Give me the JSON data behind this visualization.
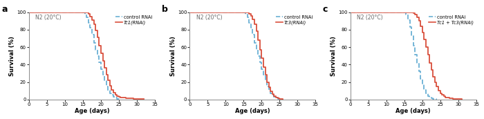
{
  "panels": [
    {
      "label": "a",
      "title": "N2 (20°C)",
      "legend_lines": [
        "control RNAi",
        "Tc1(RNAi)"
      ],
      "control_x": [
        0,
        15,
        15.5,
        16,
        16.5,
        17,
        17.5,
        18,
        18.5,
        19,
        19.5,
        20,
        20.5,
        21,
        21.5,
        22,
        22.5,
        23,
        23.5,
        24,
        24.5,
        25
      ],
      "control_y": [
        100,
        100,
        97,
        94,
        88,
        82,
        74,
        65,
        57,
        50,
        43,
        35,
        28,
        21,
        15,
        10,
        7,
        5,
        3,
        2,
        1,
        0
      ],
      "treatment_x": [
        0,
        16,
        16.5,
        17,
        17.5,
        18,
        18.5,
        19,
        19.5,
        20,
        20.5,
        21,
        21.5,
        22,
        22.5,
        23,
        23.5,
        24,
        24.5,
        25,
        25.5,
        26,
        27,
        28,
        29,
        30,
        31,
        32
      ],
      "treatment_y": [
        100,
        100,
        98,
        95,
        91,
        86,
        79,
        71,
        62,
        53,
        44,
        36,
        28,
        22,
        16,
        11,
        8,
        5,
        4,
        3,
        2.5,
        2,
        1.5,
        1.2,
        1,
        0.8,
        0.5,
        0.3
      ]
    },
    {
      "label": "b",
      "title": "N2 (20°C)",
      "legend_lines": [
        "control RNAi",
        "Tc3(RNAi)"
      ],
      "control_x": [
        0,
        15,
        15.5,
        16,
        16.5,
        17,
        17.5,
        18,
        18.5,
        19,
        19.5,
        20,
        20.5,
        21,
        21.5,
        22,
        22.5,
        23,
        23.5,
        24,
        24.5,
        25
      ],
      "control_y": [
        100,
        100,
        97,
        94,
        88,
        82,
        74,
        65,
        57,
        50,
        43,
        35,
        28,
        21,
        15,
        10,
        7,
        5,
        3,
        2,
        1,
        0
      ],
      "treatment_x": [
        0,
        16,
        16.5,
        17,
        17.5,
        18,
        18.5,
        19,
        19.5,
        20,
        20.5,
        21,
        21.5,
        22,
        22.5,
        23,
        23.5,
        24,
        24.5,
        25,
        25.5,
        26
      ],
      "treatment_y": [
        100,
        100,
        98,
        96,
        92,
        86,
        78,
        68,
        57,
        47,
        37,
        28,
        20,
        14,
        9,
        6,
        4,
        2.5,
        1.5,
        1,
        0.5,
        0.2
      ]
    },
    {
      "label": "c",
      "title": "N2 (20°C)",
      "legend_lines": [
        "control RNAi",
        "Tc1 + Tc3(RNAi)"
      ],
      "control_x": [
        0,
        15,
        15.5,
        16,
        16.5,
        17,
        17.5,
        18,
        18.5,
        19,
        19.5,
        20,
        20.5,
        21,
        21.5,
        22,
        22.5,
        23,
        23.5,
        24
      ],
      "control_y": [
        100,
        100,
        97,
        91,
        83,
        73,
        62,
        51,
        41,
        32,
        24,
        17,
        11,
        7,
        4,
        2.5,
        1.5,
        1,
        0.5,
        0.2
      ],
      "treatment_x": [
        0,
        17,
        17.5,
        18,
        18.5,
        19,
        19.5,
        20,
        20.5,
        21,
        21.5,
        22,
        22.5,
        23,
        23.5,
        24,
        24.5,
        25,
        25.5,
        26,
        26.5,
        27,
        27.5,
        28,
        28.5,
        29,
        29.5,
        30,
        30.5,
        31
      ],
      "treatment_y": [
        100,
        100,
        99,
        97,
        94,
        90,
        84,
        77,
        69,
        60,
        51,
        42,
        34,
        26,
        20,
        15,
        10,
        7,
        5,
        3.5,
        2.5,
        2,
        1.5,
        1.2,
        1,
        0.8,
        0.6,
        0.4,
        0.3,
        0.2
      ]
    }
  ],
  "control_color": "#6ab0d4",
  "treatment_color": "#d94f3d",
  "xlabel": "Age (days)",
  "ylabel": "Survival (%)",
  "linewidth": 1.3,
  "xlim": [
    0,
    35
  ],
  "ylim": [
    0,
    100
  ],
  "xticks": [
    0,
    5,
    10,
    15,
    20,
    25,
    30,
    35
  ],
  "yticks": [
    0,
    20,
    40,
    60,
    80,
    100
  ],
  "bg_color": "#ffffff",
  "fig_bg": "#ffffff"
}
